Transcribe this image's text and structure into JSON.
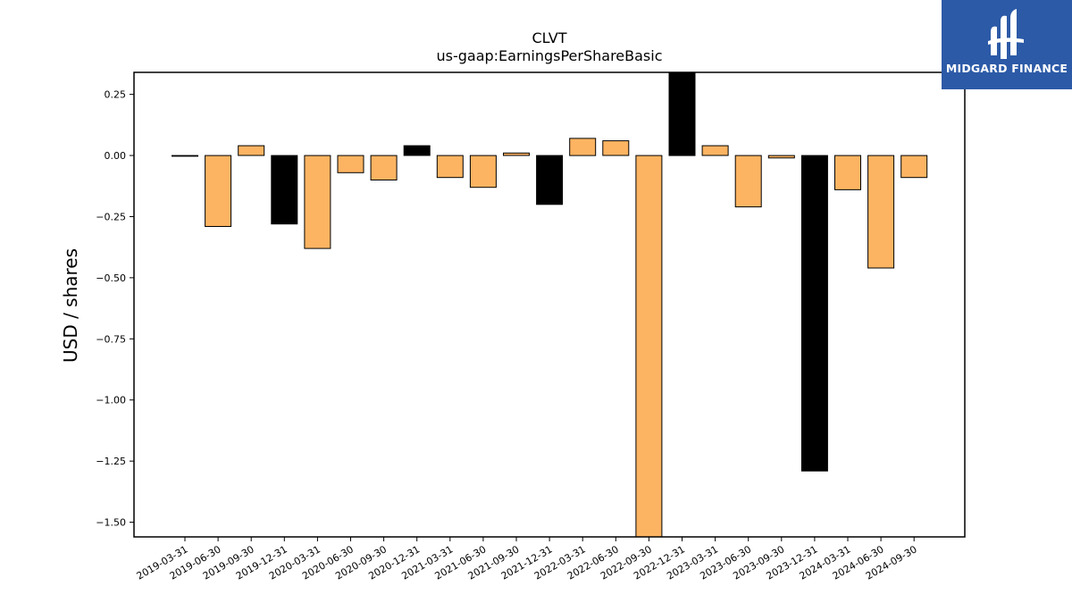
{
  "chart_data": {
    "type": "bar",
    "title": "CLVT",
    "subtitle": "us-gaap:EarningsPerShareBasic",
    "ylabel": "USD / shares",
    "xlabel": "",
    "ylim": [
      -1.56,
      0.34
    ],
    "yticks": [
      0.25,
      0.0,
      -0.25,
      -0.5,
      -0.75,
      -1.0,
      -1.25,
      -1.5
    ],
    "ytick_labels": [
      "0.25",
      "0.00",
      "−0.25",
      "−0.50",
      "−0.75",
      "−1.00",
      "−1.25",
      "−1.50"
    ],
    "grid": false,
    "legend": false,
    "categories": [
      "2019-03-31",
      "2019-06-30",
      "2019-09-30",
      "2019-12-31",
      "2020-03-31",
      "2020-06-30",
      "2020-09-30",
      "2020-12-31",
      "2021-03-31",
      "2021-06-30",
      "2021-09-30",
      "2021-12-31",
      "2022-03-31",
      "2022-06-30",
      "2022-09-30",
      "2022-12-31",
      "2023-03-31",
      "2023-06-30",
      "2023-09-30",
      "2023-12-31",
      "2024-03-31",
      "2024-06-30",
      "2024-09-30"
    ],
    "values": [
      0.0,
      -0.29,
      0.04,
      -0.28,
      -0.38,
      -0.07,
      -0.1,
      0.04,
      -0.09,
      -0.13,
      0.01,
      -0.2,
      0.07,
      0.06,
      -1.56,
      0.34,
      0.04,
      -0.21,
      -0.01,
      -1.29,
      -0.14,
      -0.46,
      -0.09
    ],
    "bar_kind": [
      "q",
      "q",
      "q",
      "a",
      "q",
      "q",
      "q",
      "a",
      "q",
      "q",
      "q",
      "a",
      "q",
      "q",
      "q",
      "a",
      "q",
      "q",
      "q",
      "a",
      "q",
      "q",
      "q"
    ],
    "colors": {
      "quarter": "#fdb462",
      "annual": "#000000",
      "edge": "#000000"
    }
  },
  "logo": {
    "text": "MIDGARD FINANCE",
    "background": "#2c5aa7",
    "icon": "midgard-logo-icon"
  }
}
